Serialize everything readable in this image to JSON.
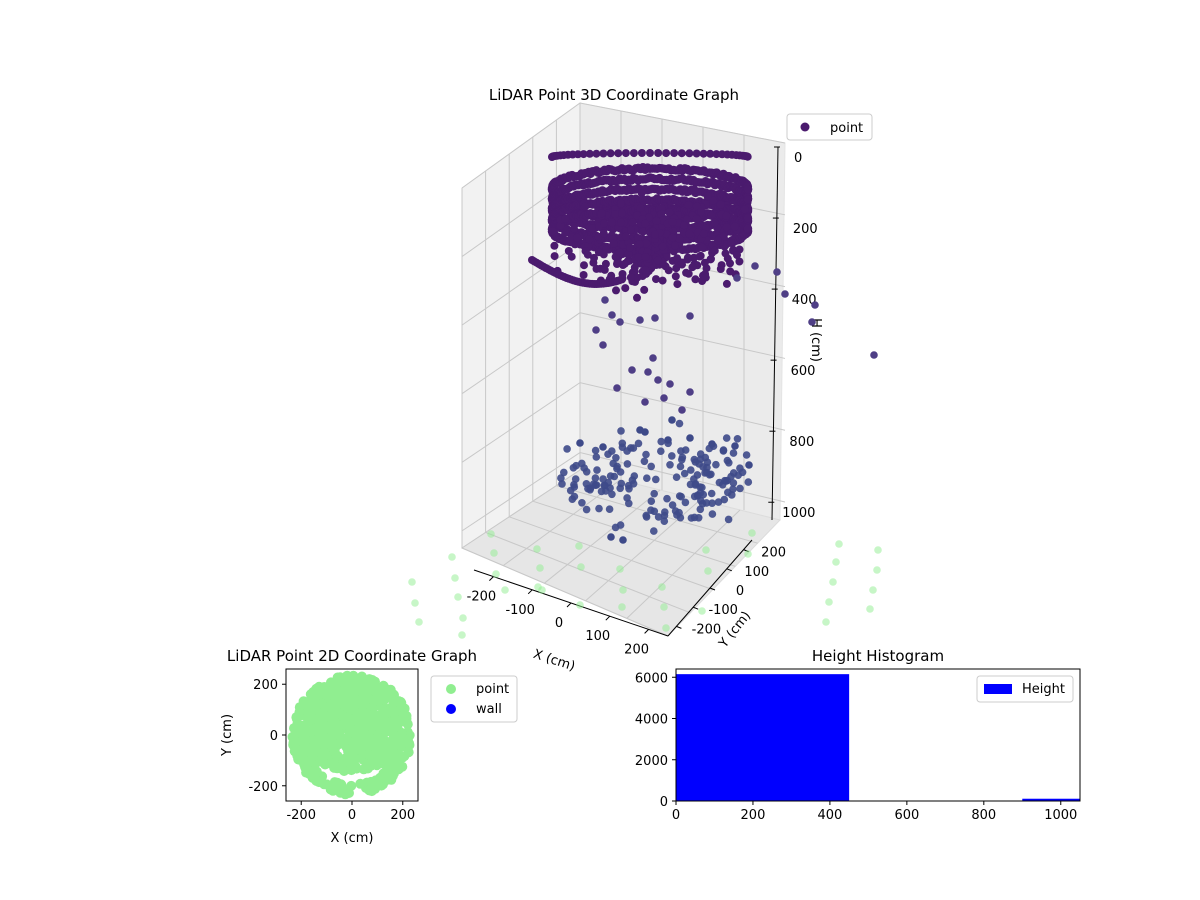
{
  "figure": {
    "colors": {
      "point3d": "#4b1b6e",
      "point3d_low": "#3e4a89",
      "point2d": "#90ee90",
      "wall": "#0000ff",
      "hist": "#0000ff"
    }
  },
  "chart_data": [
    {
      "type": "scatter",
      "title": "LiDAR Point 3D Coordinate Graph",
      "xlabel": "X (cm)",
      "ylabel": "Y (cm)",
      "zlabel": "H (cm)",
      "x_ticks": [
        "-200",
        "-100",
        "0",
        "100",
        "200"
      ],
      "y_ticks": [
        "-200",
        "-100",
        "0",
        "100",
        "200"
      ],
      "z_ticks": [
        "0",
        "200",
        "400",
        "600",
        "800",
        "1000"
      ],
      "xlim": [
        -250,
        250
      ],
      "ylim": [
        -250,
        250
      ],
      "zlim": [
        0,
        1050
      ],
      "z_inverted": true,
      "legend": [
        {
          "label": "point",
          "color": "#4b1b6e"
        }
      ],
      "series": [
        {
          "name": "point (upper ring cluster)",
          "x_range": [
            -230,
            230
          ],
          "y_range": [
            -230,
            230
          ],
          "h_range": [
            0,
            420
          ]
        },
        {
          "name": "point (sparse lower points)",
          "x_range": [
            -230,
            230
          ],
          "y_range": [
            -230,
            230
          ],
          "h_range": [
            450,
            1000
          ]
        }
      ]
    },
    {
      "type": "scatter",
      "title": "LiDAR Point 2D Coordinate Graph",
      "xlabel": "X (cm)",
      "ylabel": "Y (cm)",
      "x_ticks": [
        "-200",
        "0",
        "200"
      ],
      "y_ticks": [
        "-200",
        "0",
        "200"
      ],
      "xlim": [
        -260,
        260
      ],
      "ylim": [
        -260,
        260
      ],
      "legend": [
        {
          "label": "point",
          "color": "#90ee90"
        },
        {
          "label": "wall",
          "color": "#0000ff"
        }
      ],
      "series": [
        {
          "name": "point",
          "shape": "disc",
          "radius": 230
        },
        {
          "name": "wall",
          "values": []
        }
      ]
    },
    {
      "type": "bar",
      "title": "Height Histogram",
      "xlabel": "",
      "ylabel": "",
      "x_ticks": [
        "0",
        "200",
        "400",
        "600",
        "800",
        "1000"
      ],
      "y_ticks": [
        "0",
        "2000",
        "4000",
        "6000"
      ],
      "xlim": [
        0,
        1050
      ],
      "ylim": [
        0,
        6400
      ],
      "legend": [
        {
          "label": "Height",
          "color": "#0000ff"
        }
      ],
      "bins": [
        {
          "start": 0,
          "end": 450,
          "count": 6150
        },
        {
          "start": 450,
          "end": 900,
          "count": 20
        },
        {
          "start": 900,
          "end": 1050,
          "count": 110
        }
      ]
    }
  ]
}
